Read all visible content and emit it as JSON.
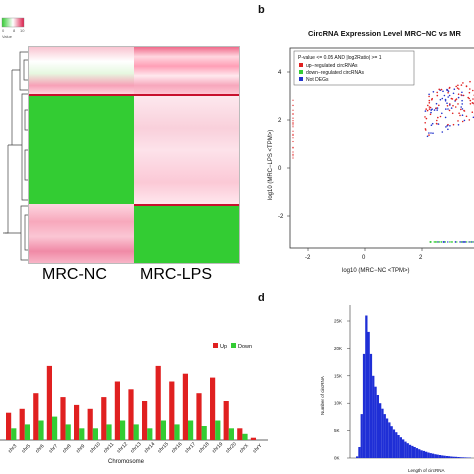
{
  "panels": {
    "b_letter": "b",
    "d_letter": "d"
  },
  "heatmap": {
    "color_key_ticks": [
      "0",
      "8",
      "10"
    ],
    "color_key_label": "Value",
    "group_labels": [
      "MRC-NC",
      "MRC-LPS"
    ],
    "colors": {
      "high": "#dc1c4a",
      "mid": "#ffffff",
      "low": "#33cc33"
    }
  },
  "chart_data": [
    {
      "type": "scatter",
      "title": "CircRNA Expression Level MRC−NC vs MR",
      "xlabel": "log10 (MRC−NC <TPM>)",
      "ylabel": "log10 (MRC−LPS <TPM>)",
      "y_ticks": [
        "4",
        "2",
        "0",
        "-2"
      ],
      "x_ticks": [
        "-2",
        "0",
        "2"
      ],
      "legend": {
        "placement": "top-left",
        "header": "P-value <= 0.05 AND |log2Ratio| >= 1",
        "entries": [
          {
            "label": "up−regulated circRNAs",
            "color": "#e02020"
          },
          {
            "label": "down−regulated circRNAs",
            "color": "#33cc33"
          },
          {
            "label": "Not DEGs",
            "color": "#2233cc"
          }
        ]
      }
    },
    {
      "type": "bar",
      "xlabel": "Chromosome",
      "categories": [
        "chr3",
        "chr5",
        "chr6",
        "chr7",
        "chr8",
        "chr9",
        "chr10",
        "chr11",
        "chr12",
        "chr13",
        "chr14",
        "chr15",
        "chr16",
        "chr17",
        "chr18",
        "chr19",
        "chr20",
        "chrX",
        "chrY"
      ],
      "legend": {
        "placement": "top-right"
      },
      "series": [
        {
          "name": "Up",
          "color": "#e02020",
          "values": [
            35,
            40,
            60,
            95,
            55,
            45,
            40,
            55,
            75,
            65,
            50,
            95,
            75,
            85,
            60,
            80,
            50,
            15,
            3
          ]
        },
        {
          "name": "Down",
          "color": "#33cc33",
          "values": [
            15,
            20,
            25,
            30,
            20,
            15,
            15,
            20,
            25,
            20,
            15,
            25,
            20,
            25,
            18,
            25,
            15,
            8,
            0
          ]
        }
      ]
    },
    {
      "type": "bar",
      "ylabel": "Number of circRNA",
      "xlabel": "Length of circRNA",
      "y_ticks": [
        "25K",
        "20K",
        "15K",
        "10K",
        "5K",
        "0K"
      ],
      "ylim": [
        0,
        27000
      ],
      "color": "#1f2fd6",
      "values": [
        300,
        2000,
        8000,
        19000,
        26000,
        23000,
        19000,
        15000,
        13000,
        11500,
        10000,
        9000,
        8000,
        7200,
        6500,
        5800,
        5200,
        4700,
        4200,
        3800,
        3400,
        3000,
        2700,
        2400,
        2200,
        2000,
        1800,
        1600,
        1400,
        1300,
        1150,
        1000,
        900,
        800,
        700,
        620,
        550,
        480,
        420,
        370,
        320,
        280,
        240,
        210,
        180,
        150,
        130,
        110,
        90,
        70
      ]
    }
  ]
}
